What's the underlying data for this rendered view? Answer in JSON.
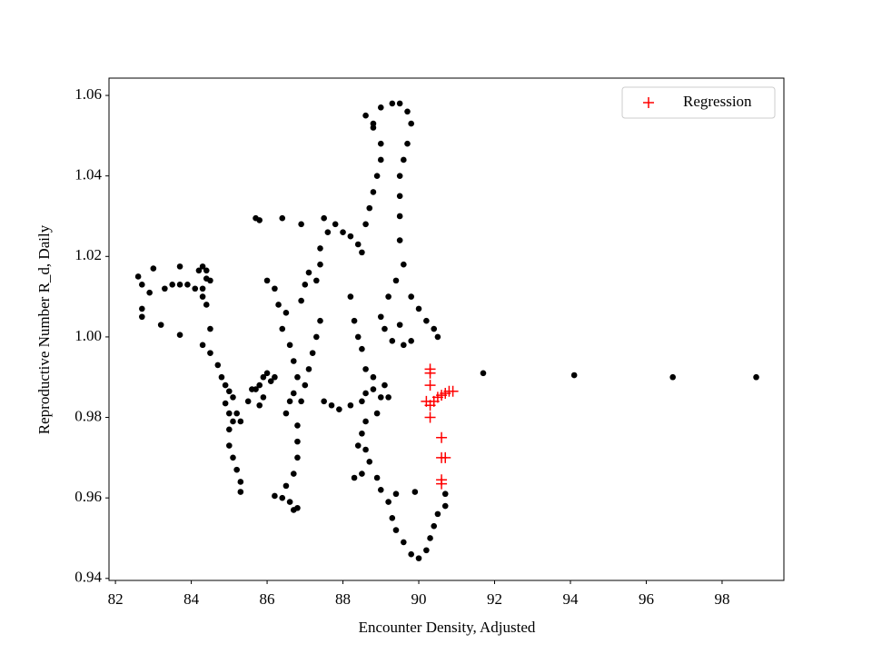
{
  "chart_data": {
    "type": "scatter",
    "xlabel": "Encounter Density, Adjusted",
    "ylabel": "Reproductive Number R_d, Daily",
    "xlim": [
      81.83,
      99.63
    ],
    "ylim": [
      0.9395,
      1.0643
    ],
    "xticks": [
      82,
      84,
      86,
      88,
      90,
      92,
      94,
      96,
      98
    ],
    "yticks": [
      0.94,
      0.96,
      0.98,
      {
        "value": 1.0,
        "label": "1.00"
      },
      1.02,
      1.04,
      1.06
    ],
    "grid": false,
    "legend": "upper right",
    "series": [
      {
        "color": "#000000",
        "marker": "o",
        "x": [
          82.6,
          82.7,
          82.9,
          82.7,
          82.7,
          83.0,
          83.2,
          83.3,
          83.5,
          83.7,
          83.7,
          83.9,
          83.7,
          84.2,
          84.3,
          84.4,
          84.4,
          84.5,
          84.3,
          84.1,
          84.3,
          84.4,
          84.5,
          84.3,
          84.5,
          84.7,
          84.8,
          84.9,
          85.0,
          85.1,
          84.9,
          85.0,
          85.1,
          85.0,
          85.0,
          85.1,
          85.2,
          85.3,
          85.3,
          85.2,
          85.3,
          85.5,
          85.6,
          85.8,
          85.9,
          86.0,
          86.1,
          85.9,
          85.8,
          85.7,
          86.2,
          86.0,
          86.2,
          86.3,
          86.5,
          86.4,
          86.6,
          86.7,
          86.8,
          86.7,
          86.6,
          86.5,
          86.8,
          86.8,
          86.8,
          86.7,
          86.5,
          86.4,
          86.6,
          86.7,
          86.8,
          86.2,
          85.7,
          85.8,
          86.4,
          86.9,
          86.9,
          87.0,
          87.1,
          87.3,
          87.4,
          87.4,
          87.6,
          87.5,
          87.8,
          88.0,
          88.2,
          88.4,
          88.5,
          88.6,
          88.7,
          88.8,
          88.9,
          89.0,
          89.0,
          88.8,
          88.6,
          88.8,
          89.0,
          89.3,
          89.5,
          89.7,
          89.8,
          89.7,
          89.6,
          89.5,
          89.5,
          89.5,
          89.5,
          89.6,
          89.4,
          89.2,
          89.0,
          89.1,
          89.3,
          89.6,
          89.8,
          89.5,
          89.8,
          90.0,
          90.2,
          90.4,
          90.5,
          87.4,
          87.3,
          87.2,
          87.1,
          87.0,
          86.9,
          87.5,
          87.7,
          87.9,
          88.2,
          88.5,
          88.6,
          88.8,
          89.0,
          88.9,
          88.6,
          88.5,
          88.4,
          88.6,
          88.7,
          88.5,
          88.3,
          88.9,
          89.0,
          89.2,
          89.3,
          89.4,
          89.6,
          89.8,
          90.0,
          90.2,
          90.3,
          90.4,
          90.5,
          90.7,
          90.7,
          88.2,
          88.3,
          88.4,
          88.5,
          88.6,
          88.8,
          89.1,
          89.2,
          89.9,
          89.4,
          91.7,
          94.1,
          96.7,
          98.9
        ],
        "values": [
          1.015,
          1.013,
          1.011,
          1.007,
          1.005,
          1.017,
          1.003,
          1.012,
          1.013,
          1.0175,
          1.013,
          1.013,
          1.0005,
          1.0165,
          1.0175,
          1.0165,
          1.0145,
          1.014,
          1.012,
          1.012,
          1.01,
          1.008,
          1.002,
          0.998,
          0.996,
          0.993,
          0.99,
          0.988,
          0.9865,
          0.985,
          0.9835,
          0.981,
          0.979,
          0.977,
          0.973,
          0.97,
          0.967,
          0.964,
          0.9615,
          0.981,
          0.979,
          0.984,
          0.987,
          0.988,
          0.99,
          0.991,
          0.989,
          0.985,
          0.983,
          0.987,
          0.99,
          1.014,
          1.012,
          1.008,
          1.006,
          1.002,
          0.998,
          0.994,
          0.99,
          0.986,
          0.984,
          0.981,
          0.978,
          0.974,
          0.97,
          0.966,
          0.963,
          0.96,
          0.959,
          0.957,
          0.9575,
          0.9605,
          1.0295,
          1.029,
          1.0295,
          1.028,
          1.009,
          1.013,
          1.016,
          1.014,
          1.018,
          1.022,
          1.026,
          1.0295,
          1.028,
          1.026,
          1.025,
          1.023,
          1.021,
          1.028,
          1.032,
          1.036,
          1.04,
          1.044,
          1.048,
          1.052,
          1.055,
          1.053,
          1.057,
          1.058,
          1.058,
          1.056,
          1.053,
          1.048,
          1.044,
          1.04,
          1.035,
          1.03,
          1.024,
          1.018,
          1.014,
          1.01,
          1.005,
          1.002,
          0.999,
          0.998,
          0.999,
          1.003,
          1.01,
          1.007,
          1.004,
          1.002,
          1.0,
          1.004,
          1.0,
          0.996,
          0.992,
          0.988,
          0.984,
          0.984,
          0.983,
          0.982,
          0.983,
          0.984,
          0.986,
          0.987,
          0.985,
          0.981,
          0.979,
          0.976,
          0.973,
          0.972,
          0.969,
          0.966,
          0.965,
          0.965,
          0.962,
          0.959,
          0.955,
          0.952,
          0.949,
          0.946,
          0.945,
          0.947,
          0.95,
          0.953,
          0.956,
          0.958,
          0.961,
          1.01,
          1.004,
          1.0,
          0.997,
          0.992,
          0.99,
          0.988,
          0.985,
          0.9615,
          0.961,
          0.991,
          0.9905,
          0.99,
          0.99
        ]
      },
      {
        "name": "Regression",
        "color": "#ff0000",
        "marker": "+",
        "x": [
          90.3,
          90.3,
          90.3,
          90.2,
          90.3,
          90.3,
          90.4,
          90.5,
          90.6,
          90.7,
          90.8,
          90.9,
          90.6,
          90.6,
          90.7,
          90.6,
          90.6
        ],
        "values": [
          0.992,
          0.991,
          0.988,
          0.984,
          0.983,
          0.98,
          0.984,
          0.985,
          0.9855,
          0.986,
          0.9865,
          0.9865,
          0.975,
          0.97,
          0.97,
          0.9645,
          0.9635
        ]
      }
    ]
  }
}
